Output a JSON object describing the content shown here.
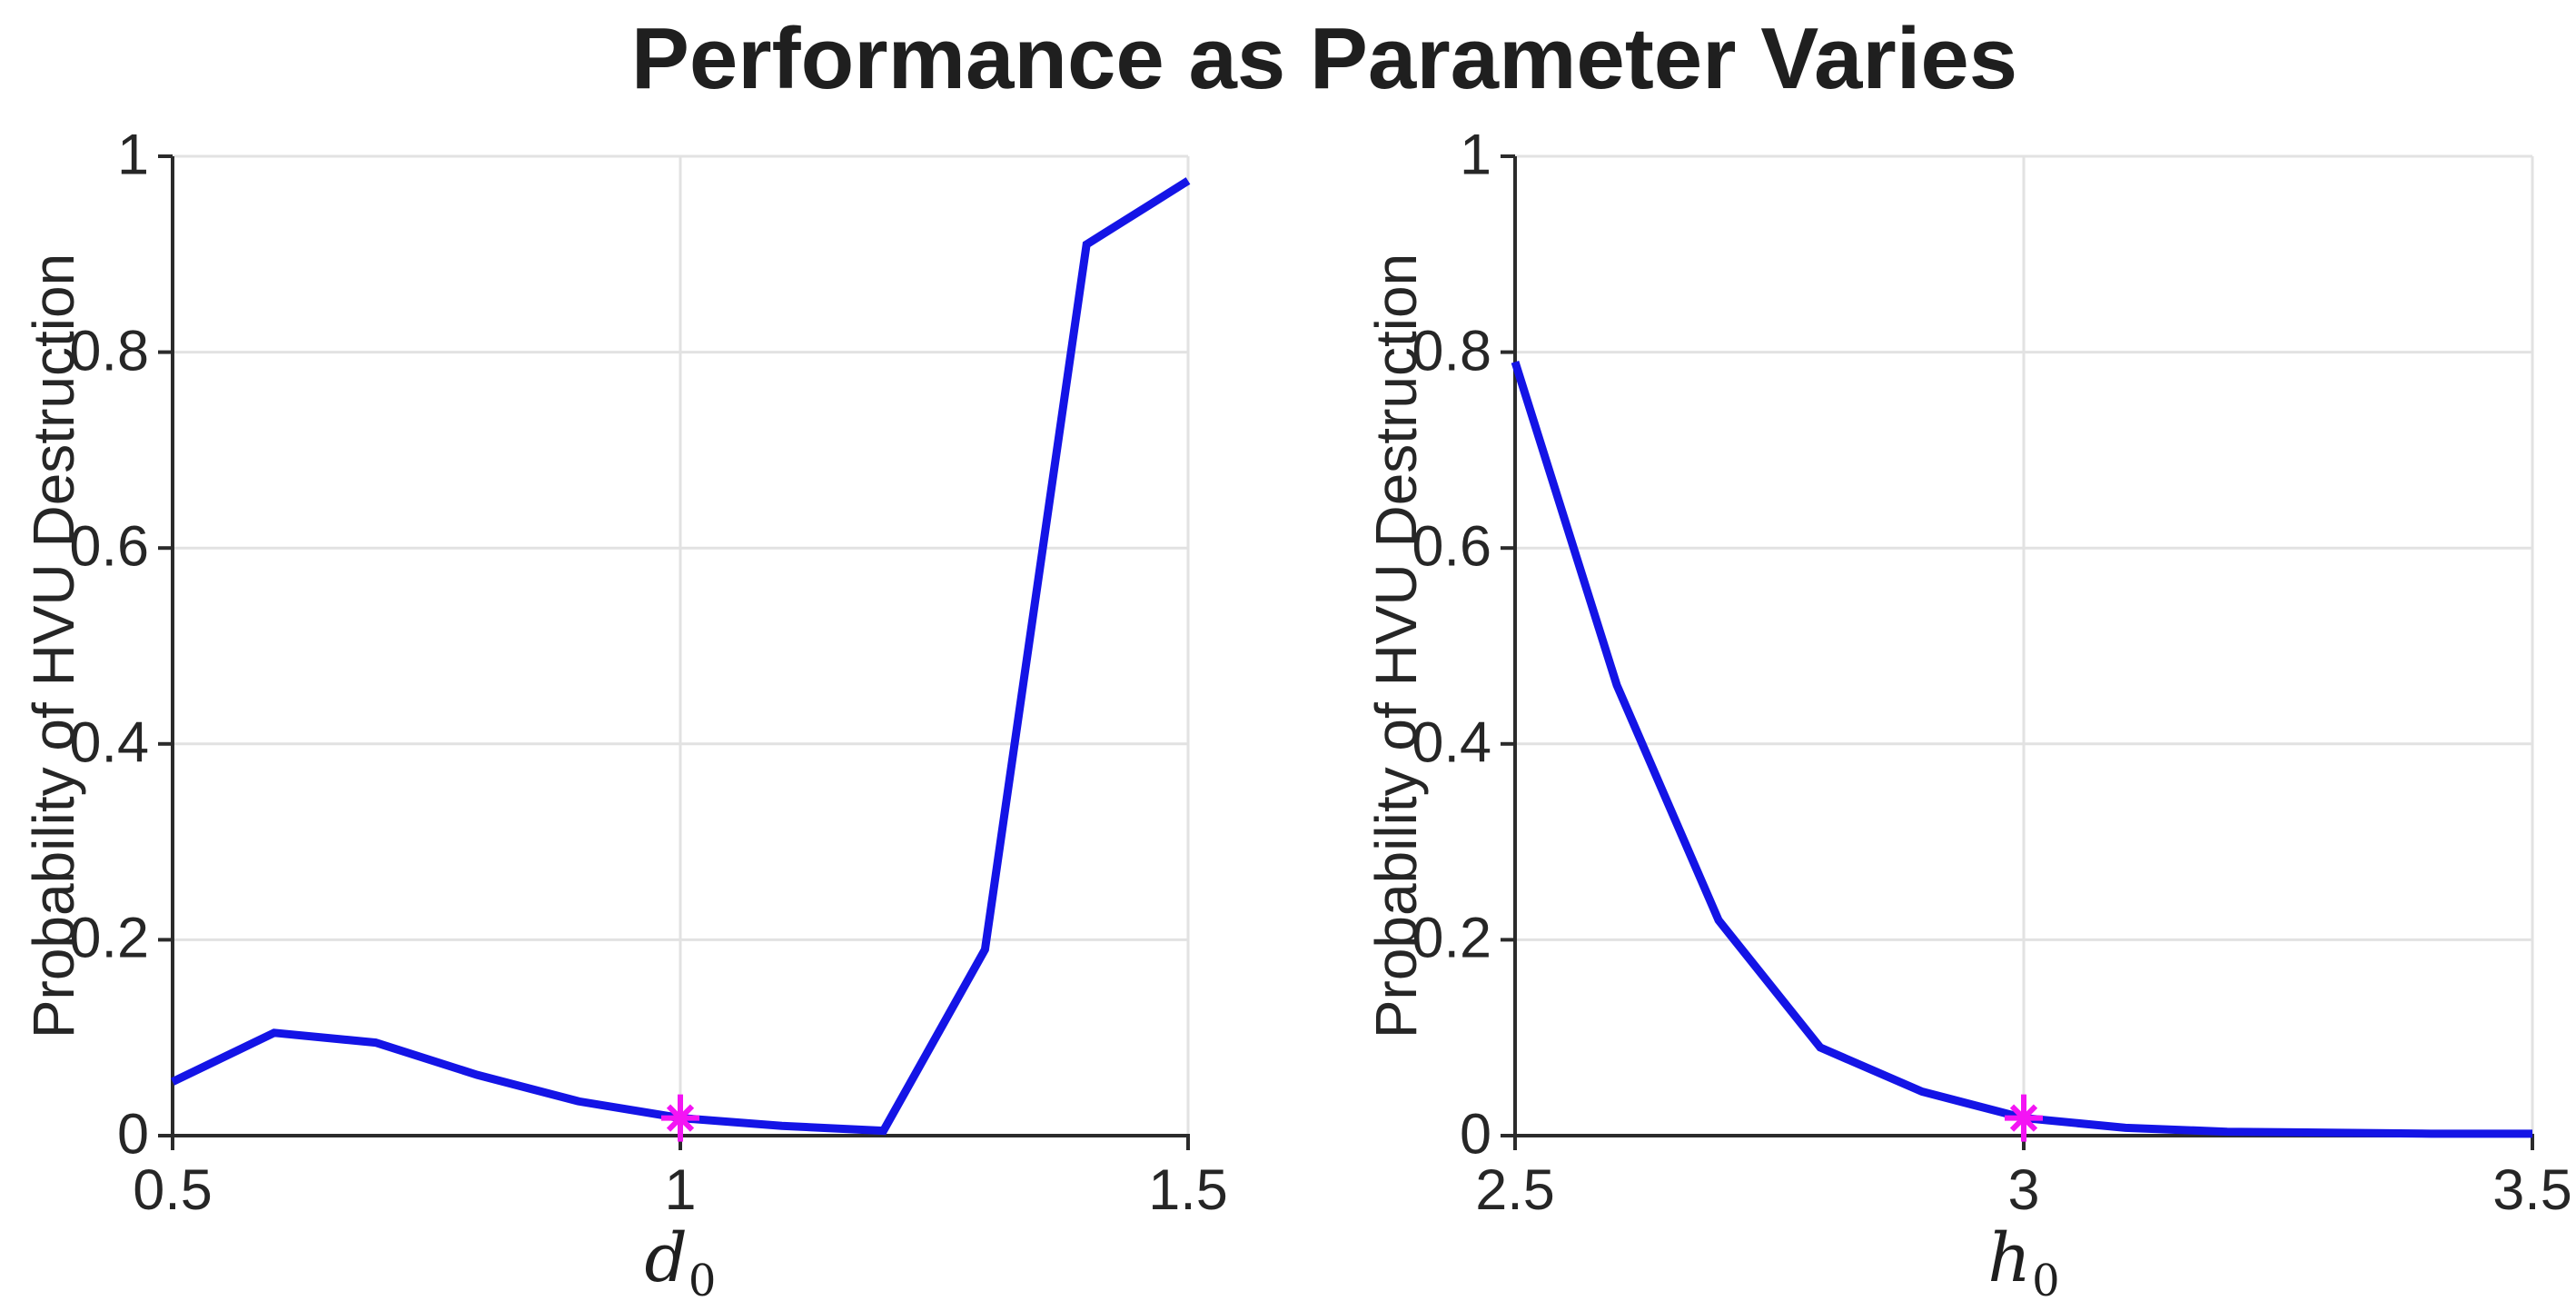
{
  "title": "Performance as Parameter Varies",
  "style": {
    "background": "#ffffff",
    "line_color": "#1414e6",
    "marker_color": "#f414f4",
    "grid_color": "#e2e2e2",
    "spine_color": "#2b2b2b",
    "text_color": "#262626"
  },
  "chart_data": [
    {
      "type": "line",
      "ylabel": "Probability of HVU Destruction",
      "xlabel_base": "d",
      "xlabel_sub": "0",
      "xlim": [
        0.5,
        1.5
      ],
      "ylim": [
        0,
        1
      ],
      "grid": true,
      "xticks": [
        {
          "v": 0.5,
          "label": "0.5"
        },
        {
          "v": 1,
          "label": "1"
        },
        {
          "v": 1.5,
          "label": "1.5"
        }
      ],
      "yticks": [
        {
          "v": 0,
          "label": "0"
        },
        {
          "v": 0.2,
          "label": "0.2"
        },
        {
          "v": 0.4,
          "label": "0.4"
        },
        {
          "v": 0.6,
          "label": "0.6"
        },
        {
          "v": 0.8,
          "label": "0.8"
        },
        {
          "v": 1,
          "label": "1"
        }
      ],
      "x": [
        0.5,
        0.6,
        0.7,
        0.8,
        0.9,
        1.0,
        1.1,
        1.2,
        1.3,
        1.4,
        1.5
      ],
      "y": [
        0.055,
        0.105,
        0.095,
        0.062,
        0.035,
        0.018,
        0.01,
        0.005,
        0.19,
        0.91,
        0.975
      ],
      "marker": {
        "x": 1.0,
        "y": 0.018,
        "shape": "asterisk"
      }
    },
    {
      "type": "line",
      "ylabel": "Probability of HVU Destruction",
      "xlabel_base": "h",
      "xlabel_sub": "0",
      "xlim": [
        2.5,
        3.5
      ],
      "ylim": [
        0,
        1
      ],
      "grid": true,
      "xticks": [
        {
          "v": 2.5,
          "label": "2.5"
        },
        {
          "v": 3,
          "label": "3"
        },
        {
          "v": 3.5,
          "label": "3.5"
        }
      ],
      "yticks": [
        {
          "v": 0,
          "label": "0"
        },
        {
          "v": 0.2,
          "label": "0.2"
        },
        {
          "v": 0.4,
          "label": "0.4"
        },
        {
          "v": 0.6,
          "label": "0.6"
        },
        {
          "v": 0.8,
          "label": "0.8"
        },
        {
          "v": 1,
          "label": "1"
        }
      ],
      "x": [
        2.5,
        2.6,
        2.7,
        2.8,
        2.9,
        3.0,
        3.1,
        3.2,
        3.3,
        3.4,
        3.5
      ],
      "y": [
        0.79,
        0.46,
        0.22,
        0.09,
        0.045,
        0.018,
        0.008,
        0.004,
        0.003,
        0.002,
        0.002
      ],
      "marker": {
        "x": 3.0,
        "y": 0.018,
        "shape": "asterisk"
      }
    }
  ]
}
